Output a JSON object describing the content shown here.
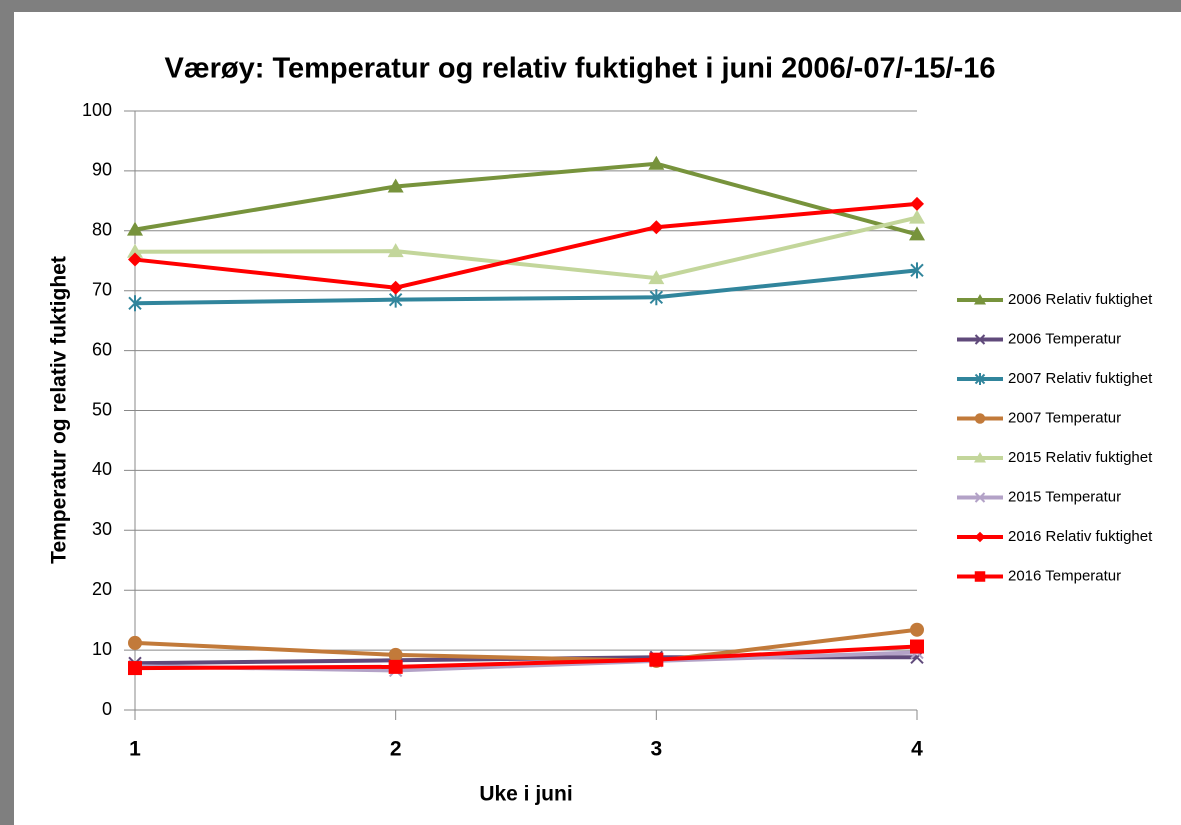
{
  "chart_data": {
    "type": "line",
    "title": "Værøy: Temperatur og relativ fuktighet i juni 2006/-07/-15/-16",
    "x_label": "Uke i juni",
    "y_label": "Temperatur og relativ fuktighet",
    "x": [
      1,
      2,
      3,
      4
    ],
    "xlim": [
      1,
      4
    ],
    "xticks": [
      1,
      2,
      3,
      4
    ],
    "ylim": [
      0,
      100
    ],
    "yticks": [
      0,
      10,
      20,
      30,
      40,
      50,
      60,
      70,
      80,
      90,
      100
    ],
    "grid": true,
    "legend": "right",
    "series": [
      {
        "name": "2006 Relativ fuktighet",
        "color": "#77933c",
        "marker": "triangle",
        "values": [
          80.2,
          87.4,
          91.2,
          79.4
        ]
      },
      {
        "name": "2006 Temperatur",
        "color": "#604a7b",
        "marker": "x",
        "values": [
          7.8,
          8.3,
          8.8,
          8.8
        ]
      },
      {
        "name": "2007 Relativ fuktighet",
        "color": "#31859c",
        "marker": "star",
        "values": [
          67.9,
          68.5,
          68.9,
          73.4
        ]
      },
      {
        "name": "2007 Temperatur",
        "color": "#c27a3a",
        "marker": "circle",
        "values": [
          11.2,
          9.2,
          8.2,
          13.4
        ]
      },
      {
        "name": "2015 Relativ fuktighet",
        "color": "#c3d69b",
        "marker": "triangle",
        "values": [
          76.5,
          76.6,
          72.1,
          82.2
        ]
      },
      {
        "name": "2015 Temperatur",
        "color": "#b3a2c7",
        "marker": "x",
        "values": [
          7.3,
          6.6,
          8.2,
          9.6
        ]
      },
      {
        "name": "2016 Relativ fuktighet",
        "color": "#ff0000",
        "marker": "diamond",
        "values": [
          75.2,
          70.5,
          80.6,
          84.5
        ]
      },
      {
        "name": "2016 Temperatur",
        "color": "#ff0000",
        "marker": "square",
        "values": [
          7.0,
          7.2,
          8.4,
          10.6
        ]
      }
    ]
  }
}
